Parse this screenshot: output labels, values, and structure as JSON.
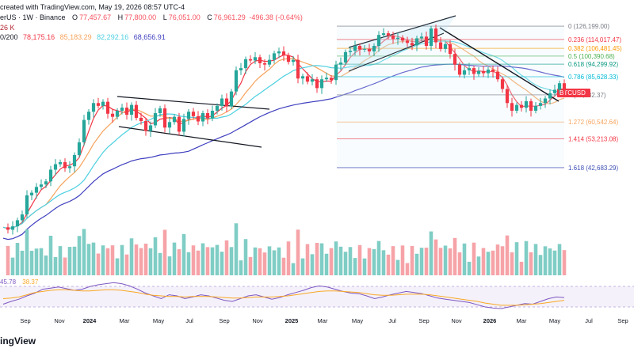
{
  "header": {
    "title_line": "created with TradingView.com, May 19, 2026 08:57 UTC-4",
    "symbol_line": "erUS · 1W · Binance",
    "ohlc": {
      "o_label": "O",
      "o": "77,457.67",
      "h_label": "H",
      "h": "77,800.00",
      "l_label": "L",
      "l": "76,051.00",
      "c_label": "C",
      "c": "76,961.29",
      "change": "-496.38 (-0.64%)"
    },
    "volume_line": "26 K",
    "ma_label": "0/200",
    "ma_values": [
      "78,175.16",
      "85,183.29",
      "82,292.16",
      "68,656.91"
    ],
    "ma_colors": [
      "#f23645",
      "#f7a35c",
      "#4dd0e1",
      "#3f3fbf"
    ]
  },
  "rsi": {
    "value1": "45.78",
    "value2": "38.37"
  },
  "fib_levels": [
    {
      "label": "0 (126,199.00)",
      "value": 126199,
      "color": "#787b86"
    },
    {
      "label": "0.236 (114,017.47)",
      "value": 114017.47,
      "color": "#f23645"
    },
    {
      "label": "0.382 (106,481.45)",
      "value": 106481.45,
      "color": "#ff9800"
    },
    {
      "label": "0.5 (100,390.68)",
      "value": 100390.68,
      "color": "#4caf50"
    },
    {
      "label": "0.618 (94,299.92)",
      "value": 94299.92,
      "color": "#089981"
    },
    {
      "label": "0.786 (85,628.33)",
      "value": 85628.33,
      "color": "#00bcd4"
    },
    {
      "label": "1 (74,582.37)",
      "value": 74582.37,
      "color": "#787b86"
    },
    {
      "label": "1.272 (60,542.64)",
      "value": 60542.64,
      "color": "#f7a35c"
    },
    {
      "label": "1.414 (53,213.08)",
      "value": 53213.08,
      "color": "#f23645"
    },
    {
      "label": "1.618 (42,683.29)",
      "value": 42683.29,
      "color": "#3f51b5"
    }
  ],
  "price_tag": "BTCUSD",
  "chart_data": {
    "type": "candlestick",
    "x_ticks": [
      "Sep",
      "Nov",
      "2024",
      "Mar",
      "May",
      "Jul",
      "Sep",
      "Nov",
      "2025",
      "Mar",
      "May",
      "Jul",
      "Sep",
      "Nov",
      "2026",
      "Mar",
      "May",
      "Jul",
      "Sep"
    ],
    "bold_ticks": [
      "2024",
      "2025",
      "2026"
    ],
    "colors": {
      "up": "#26a69a",
      "down": "#f23645",
      "vol_up": "#7fcdc5",
      "vol_down": "#f6a3a8"
    },
    "price_path": [
      27000,
      26500,
      27200,
      28500,
      29800,
      34500,
      35200,
      36800,
      37500,
      38400,
      42000,
      43800,
      44500,
      42500,
      43100,
      47000,
      51800,
      61500,
      65500,
      70000,
      68500,
      70700,
      64500,
      63000,
      66000,
      67600,
      64000,
      69000,
      62500,
      61000,
      56500,
      59000,
      64800,
      67200,
      58000,
      60500,
      63000,
      56200,
      62000,
      65500,
      63300,
      60800,
      64800,
      62200,
      66000,
      68500,
      72500,
      68200,
      76500,
      90000,
      91500,
      98000,
      97000,
      99500,
      95000,
      94000,
      97500,
      102500,
      104000,
      101000,
      96000,
      97500,
      84500,
      86000,
      82500,
      84000,
      78500,
      84000,
      85000,
      83500,
      94000,
      95500,
      103500,
      104500,
      108500,
      105500,
      106000,
      104000,
      108500,
      118000,
      119500,
      117500,
      114500,
      115500,
      113000,
      111000,
      109000,
      115000,
      116500,
      108500,
      124000,
      111500,
      106000,
      110000,
      102000,
      94000,
      87000,
      90000,
      91500,
      87500,
      89500,
      88000,
      90500,
      89000,
      84000,
      78000,
      70000,
      66000,
      69000,
      67500,
      71000,
      66000,
      68500,
      70000,
      72500,
      75500,
      77500,
      81500,
      76961
    ],
    "rsi_path": [
      35,
      40,
      44,
      50,
      55,
      62,
      64,
      66,
      63,
      60,
      62,
      67,
      70,
      72,
      74,
      72,
      68,
      62,
      55,
      50,
      45,
      52,
      50,
      45,
      48,
      52,
      50,
      46,
      42,
      40,
      45,
      50,
      52,
      48,
      44,
      47,
      52,
      56,
      60,
      65,
      68,
      66,
      62,
      58,
      55,
      54,
      50,
      45,
      48,
      52,
      55,
      58,
      56,
      54,
      50,
      46,
      44,
      42,
      40,
      38,
      34,
      30,
      28,
      27,
      30,
      33,
      36,
      35,
      40,
      45,
      48,
      47
    ],
    "rsi_ma_path": [
      45,
      46,
      48,
      52,
      56,
      58,
      60,
      61,
      61,
      60,
      59,
      59,
      60,
      61,
      61,
      60,
      58,
      56,
      53,
      51,
      50,
      49,
      49,
      48,
      49,
      49,
      49,
      48,
      47,
      46,
      46,
      47,
      48,
      48,
      48,
      49,
      50,
      52,
      54,
      56,
      58,
      59,
      59,
      58,
      57,
      56,
      54,
      52,
      51,
      51,
      52,
      53,
      53,
      53,
      52,
      50,
      48,
      46,
      44,
      42,
      40,
      37,
      35,
      33,
      33,
      33,
      34,
      35,
      36,
      38,
      40,
      42
    ]
  }
}
